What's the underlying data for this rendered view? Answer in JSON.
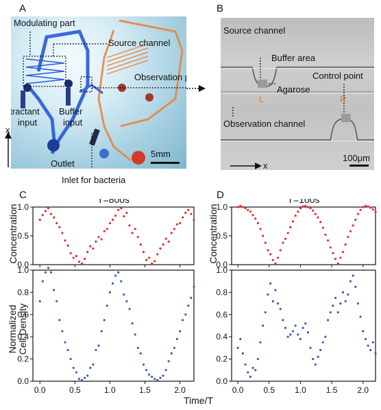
{
  "panels": {
    "a": "A",
    "b": "B",
    "c": "C",
    "d": "D"
  },
  "panelA": {
    "modulating": "Modulating part",
    "source": "Source channel",
    "observation": "Observation part",
    "attractant1": "Attractant",
    "attractant2": "input",
    "buffer1": "Buffer",
    "buffer2": "input",
    "outlet": "Outlet",
    "inlet": "Inlet  for bacteria",
    "scale": "5mm",
    "axis": "x"
  },
  "panelB": {
    "source": "Source channel",
    "buffer_area": "Buffer area",
    "control": "Control point",
    "agarose": "Agarose",
    "L": "L",
    "R": "R",
    "observation": "Observation channel",
    "axis": "x",
    "scale": "100μm"
  },
  "ylabels": {
    "concentration": "Concentration",
    "density1": "Normalized",
    "density2": "Cell Density"
  },
  "xlabel": "Time/T",
  "colors": {
    "red": "#e03030",
    "blue": "#3a5cb8"
  },
  "chart_data": [
    {
      "type": "scatter",
      "title": "T=800s",
      "ylabel": "Concentration",
      "xlim": [
        -0.1,
        2.2
      ],
      "ylim": [
        0,
        1
      ],
      "yticks": [
        "0.0",
        "0.5",
        "1.0"
      ],
      "x": [
        0.0,
        0.04,
        0.08,
        0.12,
        0.16,
        0.2,
        0.24,
        0.28,
        0.32,
        0.36,
        0.4,
        0.44,
        0.48,
        0.52,
        0.56,
        0.6,
        0.64,
        0.68,
        0.72,
        0.76,
        0.8,
        0.84,
        0.88,
        0.92,
        0.96,
        1.0,
        1.04,
        1.08,
        1.12,
        1.16,
        1.2,
        1.24,
        1.28,
        1.32,
        1.36,
        1.4,
        1.44,
        1.48,
        1.52,
        1.56,
        1.6,
        1.64,
        1.68,
        1.72,
        1.76,
        1.8,
        1.84,
        1.88,
        1.92,
        1.96,
        2.0,
        2.04,
        2.08,
        2.12,
        2.16,
        2.2
      ],
      "y": [
        0.78,
        0.86,
        0.93,
        0.98,
        0.88,
        0.82,
        0.72,
        0.65,
        0.55,
        0.42,
        0.33,
        0.2,
        0.12,
        0.15,
        0.05,
        0.02,
        0.1,
        0.22,
        0.32,
        0.28,
        0.4,
        0.48,
        0.44,
        0.58,
        0.62,
        0.72,
        0.78,
        0.85,
        0.95,
        0.98,
        0.84,
        0.9,
        0.68,
        0.55,
        0.62,
        0.48,
        0.35,
        0.22,
        0.08,
        0.12,
        0.02,
        0.06,
        0.18,
        0.28,
        0.35,
        0.45,
        0.4,
        0.55,
        0.62,
        0.7,
        0.72,
        0.82,
        0.9,
        0.95,
        0.88,
        0.78
      ]
    },
    {
      "type": "scatter",
      "title": "T=100s",
      "ylabel": "Concentration",
      "xlim": [
        -0.1,
        2.2
      ],
      "ylim": [
        0,
        1
      ],
      "yticks": [
        "0.0",
        "0.5",
        "1.0"
      ],
      "x": [
        0.0,
        0.04,
        0.08,
        0.12,
        0.16,
        0.2,
        0.24,
        0.28,
        0.32,
        0.36,
        0.4,
        0.44,
        0.48,
        0.52,
        0.56,
        0.6,
        0.64,
        0.68,
        0.72,
        0.76,
        0.8,
        0.84,
        0.88,
        0.92,
        0.96,
        1.0,
        1.04,
        1.08,
        1.12,
        1.16,
        1.2,
        1.24,
        1.28,
        1.32,
        1.36,
        1.4,
        1.44,
        1.48,
        1.52,
        1.56,
        1.6,
        1.64,
        1.68,
        1.72,
        1.76,
        1.8,
        1.84,
        1.88,
        1.92,
        1.96,
        2.0,
        2.04,
        2.08,
        2.12,
        2.16,
        2.2
      ],
      "y": [
        1.0,
        1.02,
        1.0,
        0.98,
        0.95,
        0.92,
        0.86,
        0.8,
        0.72,
        0.62,
        0.5,
        0.38,
        0.25,
        0.18,
        0.08,
        0.02,
        0.12,
        0.25,
        0.38,
        0.45,
        0.55,
        0.65,
        0.75,
        0.85,
        0.92,
        0.98,
        1.01,
        1.02,
        1.0,
        0.98,
        0.94,
        0.88,
        0.82,
        0.74,
        0.64,
        0.52,
        0.42,
        0.3,
        0.2,
        0.1,
        0.02,
        0.12,
        0.22,
        0.35,
        0.48,
        0.58,
        0.68,
        0.78,
        0.88,
        0.95,
        1.0,
        1.02,
        1.01,
        0.99,
        0.96,
        0.92
      ]
    },
    {
      "type": "scatter",
      "ylabel": "Normalized Cell Density",
      "xlabel": "Time/T",
      "xlim": [
        -0.1,
        2.2
      ],
      "ylim": [
        0,
        1
      ],
      "xticks": [
        "0.0",
        "0.5",
        "1.0",
        "1.5",
        "2.0"
      ],
      "yticks": [
        "0.0",
        "0.2",
        "0.4",
        "0.6",
        "0.8",
        "1.0"
      ],
      "x": [
        0.0,
        0.04,
        0.08,
        0.12,
        0.16,
        0.2,
        0.24,
        0.28,
        0.32,
        0.36,
        0.4,
        0.44,
        0.48,
        0.52,
        0.56,
        0.6,
        0.64,
        0.68,
        0.72,
        0.76,
        0.8,
        0.84,
        0.88,
        0.92,
        0.96,
        1.0,
        1.04,
        1.08,
        1.12,
        1.16,
        1.2,
        1.24,
        1.28,
        1.32,
        1.36,
        1.4,
        1.44,
        1.48,
        1.52,
        1.56,
        1.6,
        1.64,
        1.68,
        1.72,
        1.76,
        1.8,
        1.84,
        1.88,
        1.92,
        1.96,
        2.0,
        2.04,
        2.08,
        2.12,
        2.16,
        2.2
      ],
      "y": [
        0.72,
        0.9,
        0.98,
        1.02,
        0.98,
        0.82,
        0.72,
        0.55,
        0.45,
        0.35,
        0.28,
        0.2,
        0.12,
        0.08,
        0.02,
        0.01,
        0.03,
        0.05,
        0.12,
        0.15,
        0.28,
        0.32,
        0.45,
        0.55,
        0.68,
        0.8,
        0.88,
        0.95,
        0.98,
        0.9,
        0.78,
        0.72,
        0.65,
        0.52,
        0.42,
        0.3,
        0.25,
        0.15,
        0.1,
        0.06,
        0.04,
        0.02,
        0.01,
        0.03,
        0.05,
        0.1,
        0.18,
        0.25,
        0.3,
        0.38,
        0.45,
        0.55,
        0.6,
        0.68,
        0.75,
        0.85
      ]
    },
    {
      "type": "scatter",
      "ylabel": "Normalized Cell Density",
      "xlabel": "Time/T",
      "xlim": [
        -0.1,
        2.2
      ],
      "ylim": [
        0,
        1
      ],
      "xticks": [
        "0.0",
        "0.5",
        "1.0",
        "1.5",
        "2.0"
      ],
      "yticks": [
        "0.0",
        "0.2",
        "0.4",
        "0.6",
        "0.8",
        "1.0"
      ],
      "x": [
        0.0,
        0.04,
        0.08,
        0.12,
        0.16,
        0.2,
        0.24,
        0.28,
        0.32,
        0.36,
        0.4,
        0.44,
        0.48,
        0.52,
        0.56,
        0.6,
        0.64,
        0.68,
        0.72,
        0.76,
        0.8,
        0.84,
        0.88,
        0.92,
        0.96,
        1.0,
        1.04,
        1.08,
        1.12,
        1.16,
        1.2,
        1.24,
        1.28,
        1.32,
        1.36,
        1.4,
        1.44,
        1.48,
        1.52,
        1.56,
        1.6,
        1.64,
        1.68,
        1.72,
        1.76,
        1.8,
        1.84,
        1.88,
        1.92,
        1.96,
        2.0,
        2.04,
        2.08,
        2.12,
        2.16,
        2.2
      ],
      "y": [
        0.3,
        0.38,
        0.25,
        0.15,
        0.08,
        0.04,
        0.12,
        0.1,
        0.2,
        0.35,
        0.5,
        0.62,
        0.78,
        0.88,
        0.72,
        0.82,
        0.7,
        0.65,
        0.55,
        0.48,
        0.4,
        0.42,
        0.45,
        0.5,
        0.42,
        0.38,
        0.48,
        0.52,
        0.44,
        0.3,
        0.2,
        0.15,
        0.22,
        0.28,
        0.35,
        0.4,
        0.55,
        0.62,
        0.68,
        0.75,
        0.62,
        0.7,
        0.8,
        0.72,
        0.78,
        0.9,
        0.95,
        0.85,
        0.7,
        0.58,
        0.45,
        0.38,
        0.32,
        0.28,
        0.35,
        0.25
      ]
    }
  ]
}
